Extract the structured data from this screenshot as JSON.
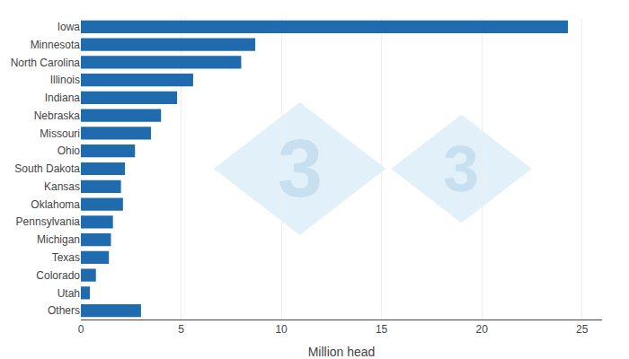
{
  "chart_data": {
    "type": "bar",
    "orientation": "horizontal",
    "categories": [
      "Iowa",
      "Minnesota",
      "North Carolina",
      "Illinois",
      "Indiana",
      "Nebraska",
      "Missouri",
      "Ohio",
      "South Dakota",
      "Kansas",
      "Oklahoma",
      "Pennsylvania",
      "Michigan",
      "Texas",
      "Colorado",
      "Utah",
      "Others"
    ],
    "values": [
      24.3,
      8.7,
      8.0,
      5.6,
      4.8,
      4.0,
      3.5,
      2.7,
      2.2,
      2.0,
      2.1,
      1.6,
      1.5,
      1.4,
      0.75,
      0.45,
      3.0
    ],
    "color": "#1F6BAE",
    "xlabel": "Million head",
    "xlim": [
      0,
      26
    ],
    "xticks": [
      0,
      5,
      10,
      15,
      20,
      25
    ],
    "grid": true,
    "annotations": [
      "3",
      "3"
    ]
  }
}
